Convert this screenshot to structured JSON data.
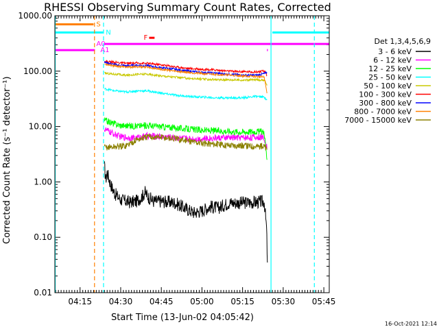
{
  "chart_data": {
    "type": "line",
    "title": "RHESSI Observing Summary Count Rates, Corrected",
    "xlabel": "Start Time (13-Jun-02 04:05:42)",
    "ylabel": "Corrected Count Rate (s⁻¹ detector⁻¹)",
    "ylog": true,
    "ylim": [
      0.01,
      1000
    ],
    "xlim_minutes": [
      "04:05:42",
      "05:47:00"
    ],
    "yticks": [
      {
        "value": 0.01,
        "label": "0.01"
      },
      {
        "value": 0.1,
        "label": "0.10"
      },
      {
        "value": 1,
        "label": "1.00"
      },
      {
        "value": 10,
        "label": "10.00"
      },
      {
        "value": 100,
        "label": "100.00"
      },
      {
        "value": 1000,
        "label": "1000.00"
      }
    ],
    "xticks": [
      {
        "time": "04:15",
        "label": "04:15"
      },
      {
        "time": "04:30",
        "label": "04:30"
      },
      {
        "time": "04:45",
        "label": "04:45"
      },
      {
        "time": "05:00",
        "label": "05:00"
      },
      {
        "time": "05:15",
        "label": "05:15"
      },
      {
        "time": "05:30",
        "label": "05:30"
      },
      {
        "time": "05:45",
        "label": "05:45"
      }
    ],
    "legend_title": "Det 1,3,4,5,6,9",
    "legend_position": "right",
    "series": [
      {
        "name": "3 - 6 keV",
        "color": "#000000",
        "data": [
          [
            "04:24:00",
            1.9
          ],
          [
            "04:24:30",
            1.1
          ],
          [
            "04:25:00",
            1.5
          ],
          [
            "04:26:00",
            1.0
          ],
          [
            "04:27:00",
            0.75
          ],
          [
            "04:28:00",
            0.6
          ],
          [
            "04:30:00",
            0.48
          ],
          [
            "04:33:00",
            0.43
          ],
          [
            "04:36:00",
            0.45
          ],
          [
            "04:38:00",
            0.55
          ],
          [
            "04:39:00",
            0.65
          ],
          [
            "04:40:00",
            0.55
          ],
          [
            "04:42:00",
            0.45
          ],
          [
            "04:45:00",
            0.45
          ],
          [
            "04:50:00",
            0.42
          ],
          [
            "04:54:00",
            0.33
          ],
          [
            "04:57:00",
            0.28
          ],
          [
            "05:00:00",
            0.3
          ],
          [
            "05:03:00",
            0.36
          ],
          [
            "05:06:00",
            0.34
          ],
          [
            "05:10:00",
            0.42
          ],
          [
            "05:15:00",
            0.42
          ],
          [
            "05:20:00",
            0.43
          ],
          [
            "05:23:00",
            0.44
          ],
          [
            "05:23:50",
            0.15
          ],
          [
            "05:24:10",
            0.035
          ]
        ]
      },
      {
        "name": "6 - 12 keV",
        "color": "#ff00ff",
        "data": [
          [
            "04:24:00",
            9.0
          ],
          [
            "04:27:00",
            7.5
          ],
          [
            "04:30:00",
            6.5
          ],
          [
            "04:35:00",
            6.2
          ],
          [
            "04:40:00",
            6.8
          ],
          [
            "04:45:00",
            6.6
          ],
          [
            "04:50:00",
            6.3
          ],
          [
            "04:55:00",
            6.0
          ],
          [
            "05:00:00",
            6.0
          ],
          [
            "05:05:00",
            6.2
          ],
          [
            "05:10:00",
            6.3
          ],
          [
            "05:15:00",
            6.3
          ],
          [
            "05:20:00",
            6.4
          ],
          [
            "05:23:00",
            6.4
          ],
          [
            "05:24:00",
            4.0
          ]
        ]
      },
      {
        "name": "12 - 25 keV",
        "color": "#00ff00",
        "data": [
          [
            "04:24:00",
            13.0
          ],
          [
            "04:27:00",
            11.5
          ],
          [
            "04:30:00",
            10.5
          ],
          [
            "04:35:00",
            10.2
          ],
          [
            "04:40:00",
            10.5
          ],
          [
            "04:45:00",
            10.0
          ],
          [
            "04:50:00",
            9.5
          ],
          [
            "04:55:00",
            9.0
          ],
          [
            "05:00:00",
            8.6
          ],
          [
            "05:05:00",
            8.4
          ],
          [
            "05:10:00",
            8.2
          ],
          [
            "05:15:00",
            8.0
          ],
          [
            "05:20:00",
            8.2
          ],
          [
            "05:23:00",
            8.0
          ],
          [
            "05:24:00",
            2.5
          ]
        ]
      },
      {
        "name": "25 - 50 keV",
        "color": "#00ffff",
        "data": [
          [
            "04:24:00",
            48
          ],
          [
            "04:28:00",
            44
          ],
          [
            "04:32:00",
            42
          ],
          [
            "04:36:00",
            44
          ],
          [
            "04:40:00",
            44
          ],
          [
            "04:45:00",
            40
          ],
          [
            "04:50:00",
            37
          ],
          [
            "04:55:00",
            35
          ],
          [
            "05:00:00",
            34
          ],
          [
            "05:05:00",
            33
          ],
          [
            "05:10:00",
            33
          ],
          [
            "05:15:00",
            33
          ],
          [
            "05:20:00",
            35
          ],
          [
            "05:23:00",
            34
          ],
          [
            "05:24:00",
            30
          ]
        ]
      },
      {
        "name": "50 - 100 keV",
        "color": "#c8c800",
        "data": [
          [
            "04:24:00",
            92
          ],
          [
            "04:28:00",
            88
          ],
          [
            "04:32:00",
            84
          ],
          [
            "04:36:00",
            88
          ],
          [
            "04:40:00",
            88
          ],
          [
            "04:45:00",
            82
          ],
          [
            "04:50:00",
            78
          ],
          [
            "04:55:00",
            74
          ],
          [
            "05:00:00",
            72
          ],
          [
            "05:05:00",
            70
          ],
          [
            "05:10:00",
            70
          ],
          [
            "05:15:00",
            69
          ],
          [
            "05:20:00",
            70
          ],
          [
            "05:23:00",
            69
          ],
          [
            "05:24:00",
            55
          ]
        ]
      },
      {
        "name": "100 - 300 keV",
        "color": "#ff0000",
        "data": [
          [
            "04:24:00",
            150
          ],
          [
            "04:28:00",
            145
          ],
          [
            "04:32:00",
            138
          ],
          [
            "04:36:00",
            140
          ],
          [
            "04:40:00",
            138
          ],
          [
            "04:45:00",
            130
          ],
          [
            "04:50:00",
            120
          ],
          [
            "04:55:00",
            112
          ],
          [
            "05:00:00",
            108
          ],
          [
            "05:05:00",
            105
          ],
          [
            "05:10:00",
            100
          ],
          [
            "05:15:00",
            98
          ],
          [
            "05:20:00",
            97
          ],
          [
            "05:23:00",
            100
          ],
          [
            "05:24:00",
            85
          ]
        ]
      },
      {
        "name": "300 - 800 keV",
        "color": "#0000ff",
        "data": [
          [
            "04:24:00",
            145
          ],
          [
            "04:28:00",
            130
          ],
          [
            "04:32:00",
            125
          ],
          [
            "04:36:00",
            128
          ],
          [
            "04:40:00",
            125
          ],
          [
            "04:45:00",
            115
          ],
          [
            "04:50:00",
            108
          ],
          [
            "04:55:00",
            100
          ],
          [
            "05:00:00",
            95
          ],
          [
            "05:05:00",
            92
          ],
          [
            "05:10:00",
            88
          ],
          [
            "05:15:00",
            85
          ],
          [
            "05:20:00",
            84
          ],
          [
            "05:23:00",
            90
          ],
          [
            "05:24:00",
            95
          ]
        ]
      },
      {
        "name": "800 - 7000 keV",
        "color": "#ff8000",
        "data": [
          [
            "04:24:00",
            135
          ],
          [
            "04:28:00",
            125
          ],
          [
            "04:32:00",
            118
          ],
          [
            "04:36:00",
            120
          ],
          [
            "04:40:00",
            118
          ],
          [
            "04:45:00",
            108
          ],
          [
            "04:50:00",
            100
          ],
          [
            "04:55:00",
            95
          ],
          [
            "05:00:00",
            90
          ],
          [
            "05:05:00",
            88
          ],
          [
            "05:10:00",
            85
          ],
          [
            "05:15:00",
            82
          ],
          [
            "05:20:00",
            80
          ],
          [
            "05:23:00",
            78
          ],
          [
            "05:24:00",
            40
          ]
        ]
      },
      {
        "name": "7000 - 15000 keV",
        "color": "#8b8000",
        "data": [
          [
            "04:24:00",
            4.2
          ],
          [
            "04:28:00",
            4.3
          ],
          [
            "04:32:00",
            4.5
          ],
          [
            "04:36:00",
            5.8
          ],
          [
            "04:40:00",
            6.5
          ],
          [
            "04:45:00",
            6.4
          ],
          [
            "04:50:00",
            6.0
          ],
          [
            "04:55:00",
            5.5
          ],
          [
            "05:00:00",
            5.0
          ],
          [
            "05:05:00",
            4.8
          ],
          [
            "05:10:00",
            4.6
          ],
          [
            "05:15:00",
            4.5
          ],
          [
            "05:20:00",
            4.4
          ],
          [
            "05:23:00",
            4.4
          ],
          [
            "05:24:00",
            3.8
          ]
        ]
      }
    ],
    "flag_bars": [
      {
        "label": "S",
        "color": "#ff8000",
        "start": "04:05:42",
        "end": "04:20:00",
        "label_time": "04:21:00",
        "level": 700
      },
      {
        "label": "N",
        "color": "#00ffff",
        "start": "04:05:42",
        "end": "04:23:30",
        "label_time": "04:24:30",
        "level": 500
      },
      {
        "label": "N",
        "color": "#00ffff",
        "start": "05:26:00",
        "end": "05:47:00",
        "label_time": "",
        "level": 500
      },
      {
        "label": "F",
        "color": "#ff0000",
        "start": "04:40:30",
        "end": "04:42:30",
        "label_time": "04:38:30",
        "level": 400
      },
      {
        "label": "A0",
        "color": "#ff00ff",
        "start": "04:24:00",
        "end": "05:47:00",
        "label_time": "04:21:00",
        "level": 310
      },
      {
        "label": "A1",
        "color": "#ff00ff",
        "start": "04:05:42",
        "end": "04:20:30",
        "label_time": "04:22:30",
        "level": 240
      },
      {
        "label": "",
        "color": "#ff00ff",
        "start": "05:24:00",
        "end": "05:24:20",
        "label_time": "",
        "level": 240
      }
    ],
    "vlines": [
      {
        "time": "04:05:50",
        "color": "#00ffff",
        "style": "solid"
      },
      {
        "time": "04:20:20",
        "color": "#ff8000",
        "style": "dashed"
      },
      {
        "time": "04:23:40",
        "color": "#00ffff",
        "style": "dashed"
      },
      {
        "time": "05:25:30",
        "color": "#00ffff",
        "style": "solid"
      },
      {
        "time": "05:41:30",
        "color": "#00ffff",
        "style": "dashed"
      }
    ]
  },
  "footer": {
    "date": "16-Oct-2021 12:14"
  }
}
